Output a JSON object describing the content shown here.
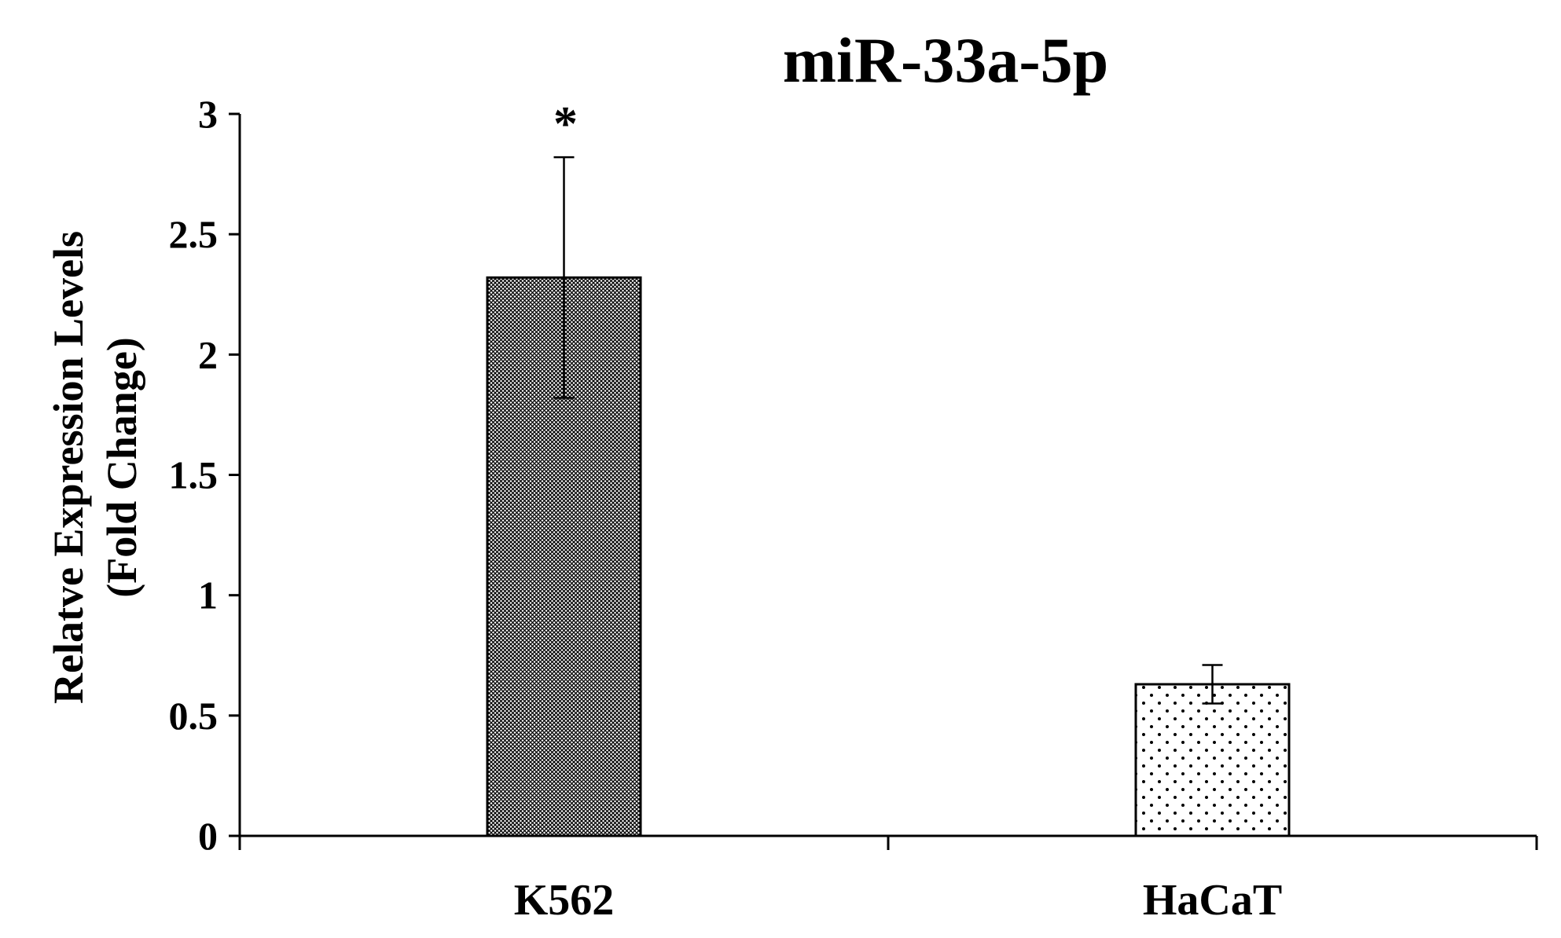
{
  "chart_data": {
    "type": "bar",
    "title": "miR-33a-5p",
    "xlabel": "",
    "ylabel": [
      "Relatve Expression Levels",
      "(Fold Change)"
    ],
    "categories": [
      "K562",
      "HaCaT"
    ],
    "values": [
      2.32,
      0.63
    ],
    "error": [
      0.5,
      0.08
    ],
    "annotations": [
      "*",
      ""
    ],
    "ylim": [
      0,
      3
    ],
    "yticks": [
      0,
      0.5,
      1,
      1.5,
      2,
      2.5,
      3
    ],
    "ytick_labels": [
      "0",
      "0.5",
      "1",
      "1.5",
      "2",
      "2.5",
      "3"
    ],
    "bar_patterns": [
      "crosshatch-dense",
      "dots-sparse"
    ],
    "grid": false,
    "legend": "none"
  }
}
